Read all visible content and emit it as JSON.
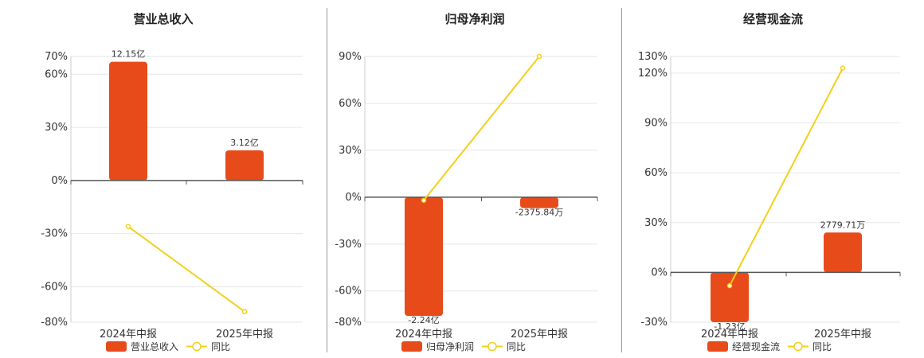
{
  "legend": {
    "yoy_label": "同比"
  },
  "colors": {
    "bar": "#e84b1a",
    "line": "#f2d01a",
    "grid": "#e6e6e6",
    "axis": "#555555",
    "divider": "#999999"
  },
  "chart_data": [
    {
      "type": "bar",
      "title": "营业总收入",
      "categories": [
        "2024年中报",
        "2025年中报"
      ],
      "series": [
        {
          "name": "营业总收入",
          "values": [
            67,
            17
          ],
          "labels": [
            "12.15亿",
            "3.12亿"
          ]
        },
        {
          "name": "同比",
          "type": "line",
          "values": [
            -26,
            -74
          ]
        }
      ],
      "yticks": [
        70,
        60,
        30,
        0,
        -30,
        -60,
        -80
      ],
      "ylim": [
        -80,
        70
      ],
      "grid": true
    },
    {
      "type": "bar",
      "title": "归母净利润",
      "categories": [
        "2024年中报",
        "2025年中报"
      ],
      "series": [
        {
          "name": "归母净利润",
          "values": [
            -76,
            -7
          ],
          "labels": [
            "-2.24亿",
            "-2375.84万"
          ]
        },
        {
          "name": "同比",
          "type": "line",
          "values": [
            -2,
            90
          ]
        }
      ],
      "yticks": [
        90,
        60,
        30,
        0,
        -30,
        -60,
        -80
      ],
      "ylim": [
        -80,
        90
      ],
      "grid": true
    },
    {
      "type": "bar",
      "title": "经营现金流",
      "categories": [
        "2024年中报",
        "2025年中报"
      ],
      "series": [
        {
          "name": "经营现金流",
          "values": [
            -30,
            24
          ],
          "labels": [
            "-1.23亿",
            "2779.71万"
          ]
        },
        {
          "name": "同比",
          "type": "line",
          "values": [
            -8,
            123
          ]
        }
      ],
      "yticks": [
        130,
        120,
        90,
        60,
        30,
        0,
        -30
      ],
      "ylim": [
        -30,
        130
      ],
      "grid": true
    }
  ]
}
